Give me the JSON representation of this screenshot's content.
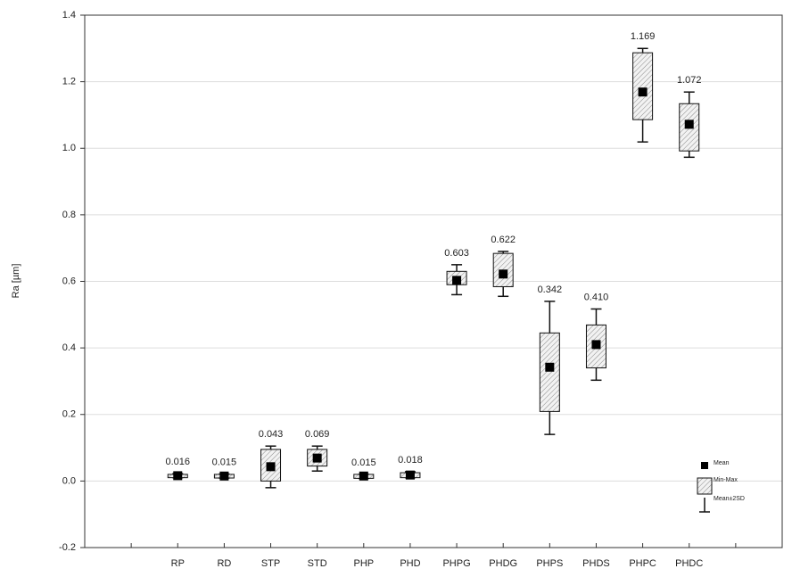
{
  "chart_data": {
    "type": "box",
    "y_label": "Ra [µm]",
    "categories": [
      "RP",
      "RD",
      "STP",
      "STD",
      "PHP",
      "PHD",
      "PHPG",
      "PHDG",
      "PHPS",
      "PHDS",
      "PHPC",
      "PHDC"
    ],
    "values": [
      0.016,
      0.015,
      0.043,
      0.069,
      0.015,
      0.018,
      0.603,
      0.622,
      0.342,
      0.41,
      1.169,
      1.072
    ],
    "value_labels": [
      "0.016",
      "0.015",
      "0.043",
      "0.069",
      "0.015",
      "0.018",
      "0.603",
      "0.622",
      "0.342",
      "0.410",
      "1.169",
      "1.072"
    ],
    "box_low": [
      0.01,
      0.009,
      0.0,
      0.045,
      0.008,
      0.01,
      0.59,
      0.584,
      0.209,
      0.34,
      1.086,
      0.992
    ],
    "box_high": [
      0.02,
      0.02,
      0.095,
      0.095,
      0.02,
      0.025,
      0.63,
      0.684,
      0.445,
      0.469,
      1.287,
      1.134
    ],
    "min": [
      0.01,
      0.009,
      -0.02,
      0.03,
      0.008,
      0.01,
      0.56,
      0.555,
      0.14,
      0.303,
      1.019,
      0.973
    ],
    "max": [
      0.022,
      0.021,
      0.105,
      0.105,
      0.02,
      0.028,
      0.65,
      0.69,
      0.54,
      0.517,
      1.3,
      1.169
    ],
    "legend": [
      "Mean",
      "Min-Max",
      "Mean±2SD"
    ],
    "ylim": [
      -0.2,
      1.4
    ],
    "yticks": [
      -0.2,
      {
        "value": 0,
        "label": "0.0"
      },
      0.2,
      0.4,
      0.6,
      0.8,
      {
        "value": 1,
        "label": "1.0"
      },
      1.2,
      1.4
    ],
    "grid": true,
    "legend_position": "lower-right"
  }
}
